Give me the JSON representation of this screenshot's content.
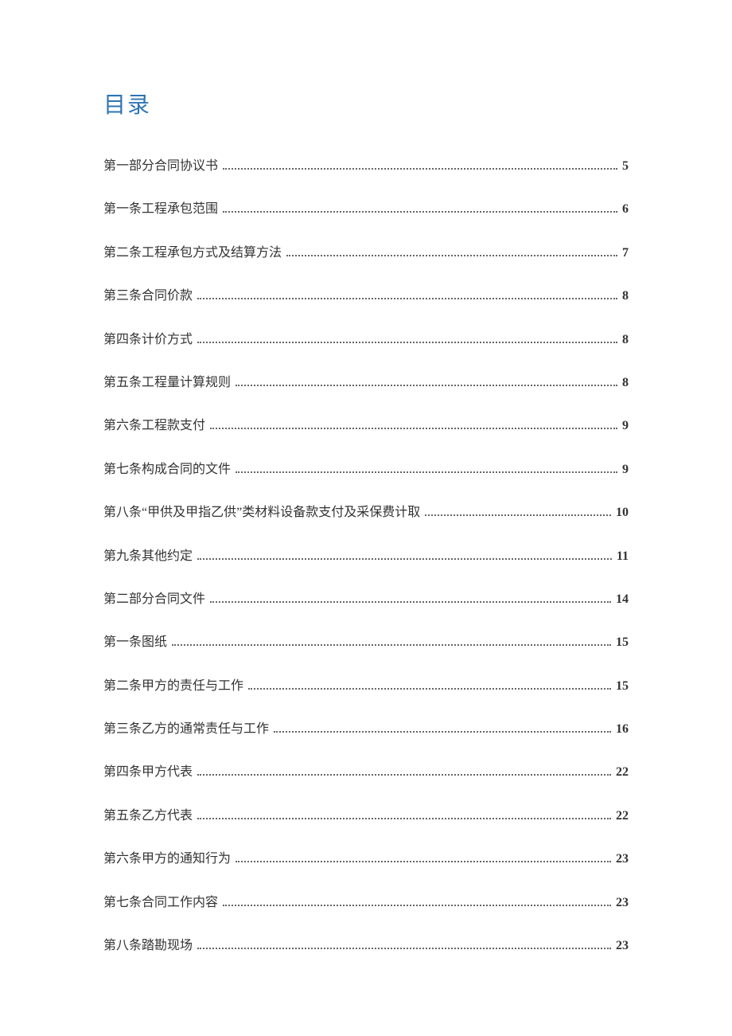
{
  "title": "目录",
  "title_color": "#2e74b5",
  "title_fontsize": 28,
  "entry_fontsize": 16,
  "text_color": "#333333",
  "dot_color": "#666666",
  "background_color": "#ffffff",
  "entries": [
    {
      "label": "第一部分合同协议书",
      "page": "5"
    },
    {
      "label": "第一条工程承包范围",
      "page": "6"
    },
    {
      "label": "第二条工程承包方式及结算方法",
      "page": "7"
    },
    {
      "label": "第三条合同价款",
      "page": "8"
    },
    {
      "label": "第四条计价方式",
      "page": "8"
    },
    {
      "label": "第五条工程量计算规则",
      "page": "8"
    },
    {
      "label": "第六条工程款支付",
      "page": "9"
    },
    {
      "label": "第七条构成合同的文件",
      "page": "9"
    },
    {
      "label": "第八条“甲供及甲指乙供”类材料设备款支付及采保费计取",
      "page": "10"
    },
    {
      "label": "第九条其他约定",
      "page": "11"
    },
    {
      "label": "第二部分合同文件",
      "page": "14"
    },
    {
      "label": "第一条图纸",
      "page": "15"
    },
    {
      "label": "第二条甲方的责任与工作",
      "page": "15"
    },
    {
      "label": "第三条乙方的通常责任与工作",
      "page": "16"
    },
    {
      "label": "第四条甲方代表",
      "page": "22"
    },
    {
      "label": "第五条乙方代表",
      "page": "22"
    },
    {
      "label": "第六条甲方的通知行为",
      "page": "23"
    },
    {
      "label": "第七条合同工作内容",
      "page": "23"
    },
    {
      "label": "第八条踏勘现场",
      "page": "23"
    }
  ]
}
